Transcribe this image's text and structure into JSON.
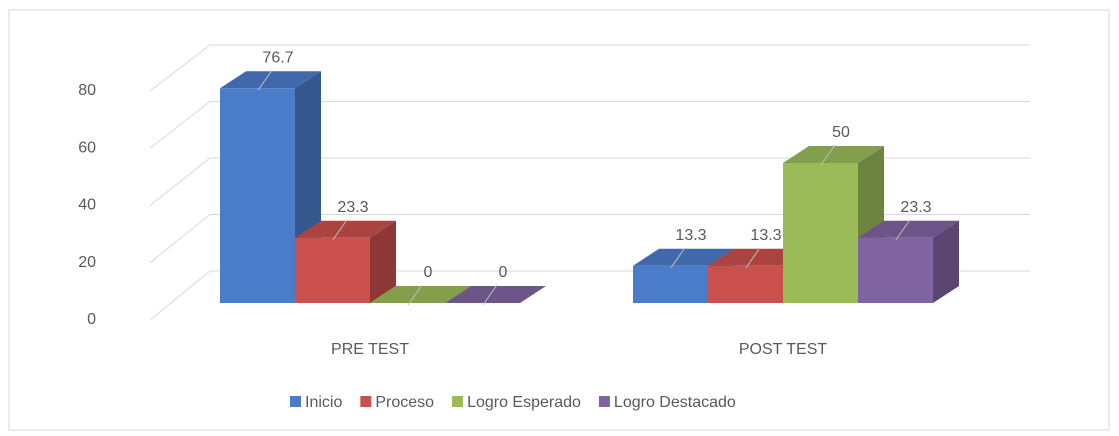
{
  "chart_data": {
    "type": "bar3d",
    "categories": [
      "PRE TEST",
      "POST TEST"
    ],
    "series": [
      {
        "name": "Inicio",
        "color": "#4a7cc9",
        "values": [
          76.7,
          13.3
        ]
      },
      {
        "name": "Proceso",
        "color": "#c9504d",
        "values": [
          23.3,
          13.3
        ]
      },
      {
        "name": "Logro Esperado",
        "color": "#9bbb59",
        "values": [
          0,
          50
        ]
      },
      {
        "name": "Logro Destacado",
        "color": "#8064a2",
        "values": [
          0,
          23.3
        ]
      }
    ],
    "ylim": [
      0,
      80
    ],
    "yticks": [
      0,
      20,
      40,
      60,
      80
    ],
    "grid": true,
    "legend": "bottom"
  }
}
